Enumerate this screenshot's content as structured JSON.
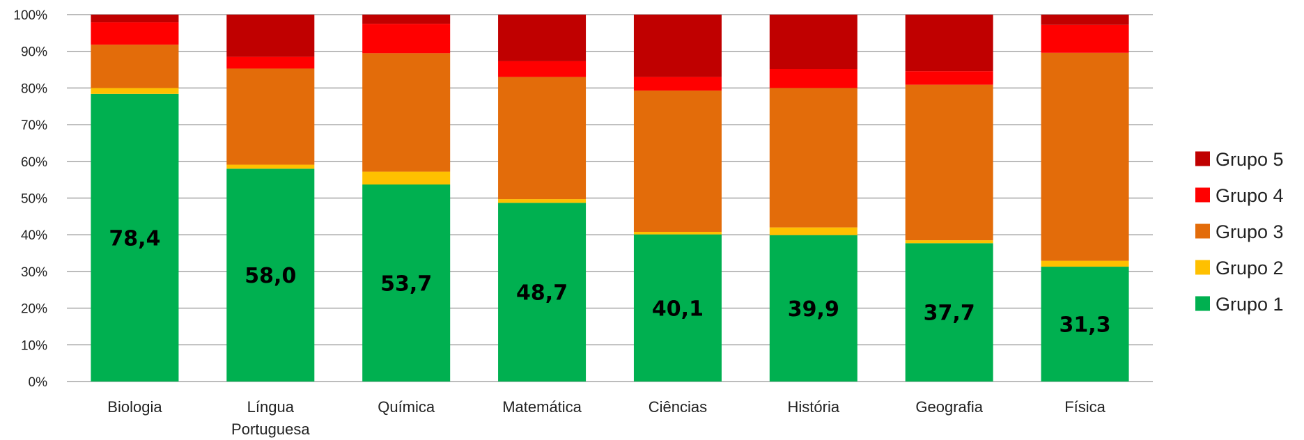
{
  "chart_data": {
    "type": "bar",
    "stacked": true,
    "percent_stacked": true,
    "categories": [
      "Biologia",
      "Língua Portuguesa",
      "Química",
      "Matemática",
      "Ciências",
      "História",
      "Geografia",
      "Física"
    ],
    "series": [
      {
        "name": "Grupo 1",
        "color": "#00b050",
        "values": [
          78.4,
          58.0,
          53.7,
          48.7,
          40.1,
          39.9,
          37.7,
          31.3
        ]
      },
      {
        "name": "Grupo 2",
        "color": "#ffc000",
        "values": [
          1.6,
          1.1,
          3.5,
          1.0,
          0.7,
          2.1,
          0.8,
          1.6
        ]
      },
      {
        "name": "Grupo 3",
        "color": "#e36c0a",
        "values": [
          11.8,
          26.2,
          32.3,
          33.3,
          38.5,
          38.0,
          42.4,
          56.7
        ]
      },
      {
        "name": "Grupo 4",
        "color": "#ff0000",
        "values": [
          6.1,
          3.2,
          8.0,
          4.3,
          3.7,
          5.2,
          3.7,
          7.6
        ]
      },
      {
        "name": "Grupo 5",
        "color": "#c00000",
        "values": [
          2.1,
          11.5,
          2.5,
          12.7,
          17.0,
          14.8,
          15.4,
          2.8
        ]
      }
    ],
    "data_labels": [
      "78,4",
      "58,0",
      "53,7",
      "48,7",
      "40,1",
      "39,9",
      "37,7",
      "31,3"
    ],
    "yticks": [
      "0%",
      "10%",
      "20%",
      "30%",
      "40%",
      "50%",
      "60%",
      "70%",
      "80%",
      "90%",
      "100%"
    ],
    "ylim": [
      0,
      100
    ],
    "grid": true,
    "legend": {
      "position": "right",
      "order": [
        "Grupo 5",
        "Grupo 4",
        "Grupo 3",
        "Grupo 2",
        "Grupo 1"
      ]
    }
  }
}
